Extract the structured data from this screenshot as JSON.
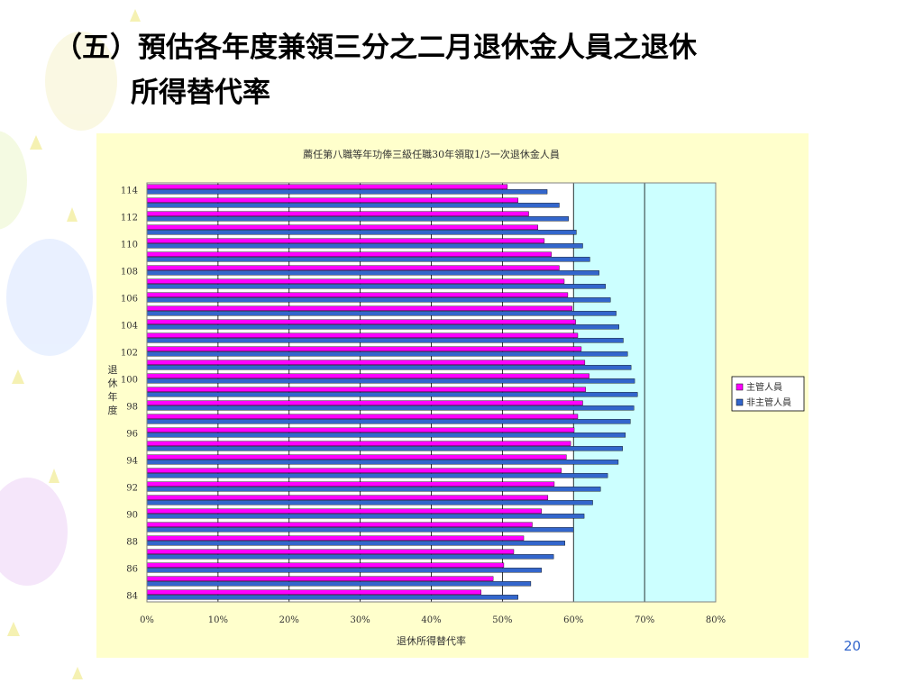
{
  "slide": {
    "title_line1": "（五）預估各年度兼領三分之二月退休金人員之退休",
    "title_line2": "所得替代率",
    "page_number": "20"
  },
  "colors": {
    "panel_bg": "#ffffcc",
    "plot_bg": "#ffffff",
    "shade_bg": "#ccffff",
    "series_manager": "#ff00ff",
    "series_nonmanager": "#3366cc",
    "page_number": "#3366cc"
  },
  "chart_data": {
    "type": "bar",
    "orientation": "horizontal",
    "title": "薦任第八職等年功俸三級任職30年領取1/3一次退休金人員",
    "xlabel": "退休所得替代率",
    "ylabel": "退休年度",
    "xlim": [
      0,
      0.8
    ],
    "x_ticks": [
      "0%",
      "10%",
      "20%",
      "30%",
      "40%",
      "50%",
      "60%",
      "70%",
      "80%"
    ],
    "y_tick_labels": [
      "84",
      "86",
      "88",
      "90",
      "92",
      "94",
      "96",
      "98",
      "100",
      "102",
      "104",
      "106",
      "108",
      "110",
      "112",
      "114"
    ],
    "grid": "vertical",
    "shaded_x_range": [
      0.6,
      0.8
    ],
    "legend_position": "right",
    "categories": [
      "84",
      "85",
      "86",
      "87",
      "88",
      "89",
      "90",
      "91",
      "92",
      "93",
      "94",
      "95",
      "96",
      "97",
      "98",
      "99",
      "100",
      "101",
      "102",
      "103",
      "104",
      "105",
      "106",
      "107",
      "108",
      "109",
      "110",
      "111",
      "112",
      "113",
      "114"
    ],
    "series": [
      {
        "name": "主管人員",
        "color": "#ff00ff",
        "values": [
          0.47,
          0.487,
          0.502,
          0.516,
          0.53,
          0.542,
          0.555,
          0.564,
          0.573,
          0.583,
          0.59,
          0.596,
          0.601,
          0.606,
          0.613,
          0.617,
          0.622,
          0.616,
          0.611,
          0.606,
          0.603,
          0.598,
          0.592,
          0.587,
          0.58,
          0.569,
          0.559,
          0.55,
          0.537,
          0.522,
          0.507
        ]
      },
      {
        "name": "非主管人員",
        "color": "#3366cc",
        "values": [
          0.522,
          0.54,
          0.555,
          0.572,
          0.588,
          0.6,
          0.615,
          0.627,
          0.638,
          0.648,
          0.663,
          0.669,
          0.673,
          0.68,
          0.685,
          0.69,
          0.686,
          0.681,
          0.676,
          0.67,
          0.664,
          0.66,
          0.652,
          0.645,
          0.636,
          0.623,
          0.613,
          0.604,
          0.593,
          0.58,
          0.563
        ]
      }
    ]
  }
}
